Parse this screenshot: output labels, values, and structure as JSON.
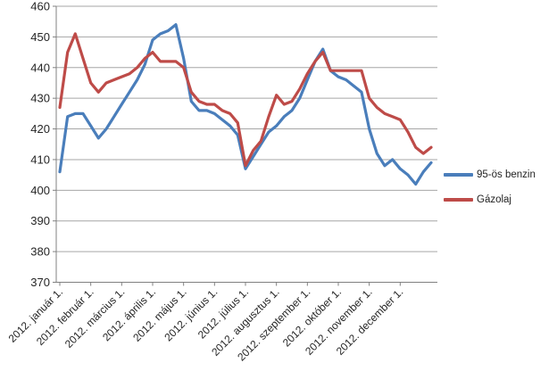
{
  "chart_data": {
    "type": "line",
    "title": "",
    "xlabel": "",
    "ylabel": "",
    "ylim": [
      370,
      460
    ],
    "y_ticks": [
      370,
      380,
      390,
      400,
      410,
      420,
      430,
      440,
      450,
      460
    ],
    "grid": "horizontal",
    "legend_position": "right",
    "points_per_month": 4,
    "x_tick_labels": [
      "2012. január 1.",
      "2012. február 1.",
      "2012. március 1.",
      "2012. április 1.",
      "2012. május 1.",
      "2012. június 1.",
      "2012. július 1.",
      "2012. augusztus 1.",
      "2012. szeptember 1.",
      "2012. október 1.",
      "2012. november 1.",
      "2012. december 1."
    ],
    "series": [
      {
        "name": "95-ös benzin",
        "color": "#4A7EBB",
        "values": [
          406,
          424,
          425,
          425,
          421,
          417,
          420,
          424,
          428,
          432,
          436,
          441,
          449,
          451,
          452,
          454,
          443,
          429,
          426,
          426,
          425,
          423,
          421,
          418,
          407,
          411,
          415,
          419,
          421,
          424,
          426,
          430,
          436,
          442,
          446,
          439,
          437,
          436,
          434,
          432,
          420,
          412,
          408,
          410,
          407,
          405,
          402,
          406,
          409
        ]
      },
      {
        "name": "Gázolaj",
        "color": "#BE4B48",
        "values": [
          427,
          445,
          451,
          443,
          435,
          432,
          435,
          436,
          437,
          438,
          440,
          443,
          445,
          442,
          442,
          442,
          440,
          432,
          429,
          428,
          428,
          426,
          425,
          422,
          408,
          413,
          416,
          424,
          431,
          428,
          429,
          433,
          438,
          442,
          445,
          439,
          439,
          439,
          439,
          439,
          430,
          427,
          425,
          424,
          423,
          419,
          414,
          412,
          414
        ]
      }
    ]
  },
  "colors": {
    "background": "#FFFFFF",
    "gridline": "#A6A6A6",
    "axis": "#808080",
    "tick_text": "#262626"
  }
}
